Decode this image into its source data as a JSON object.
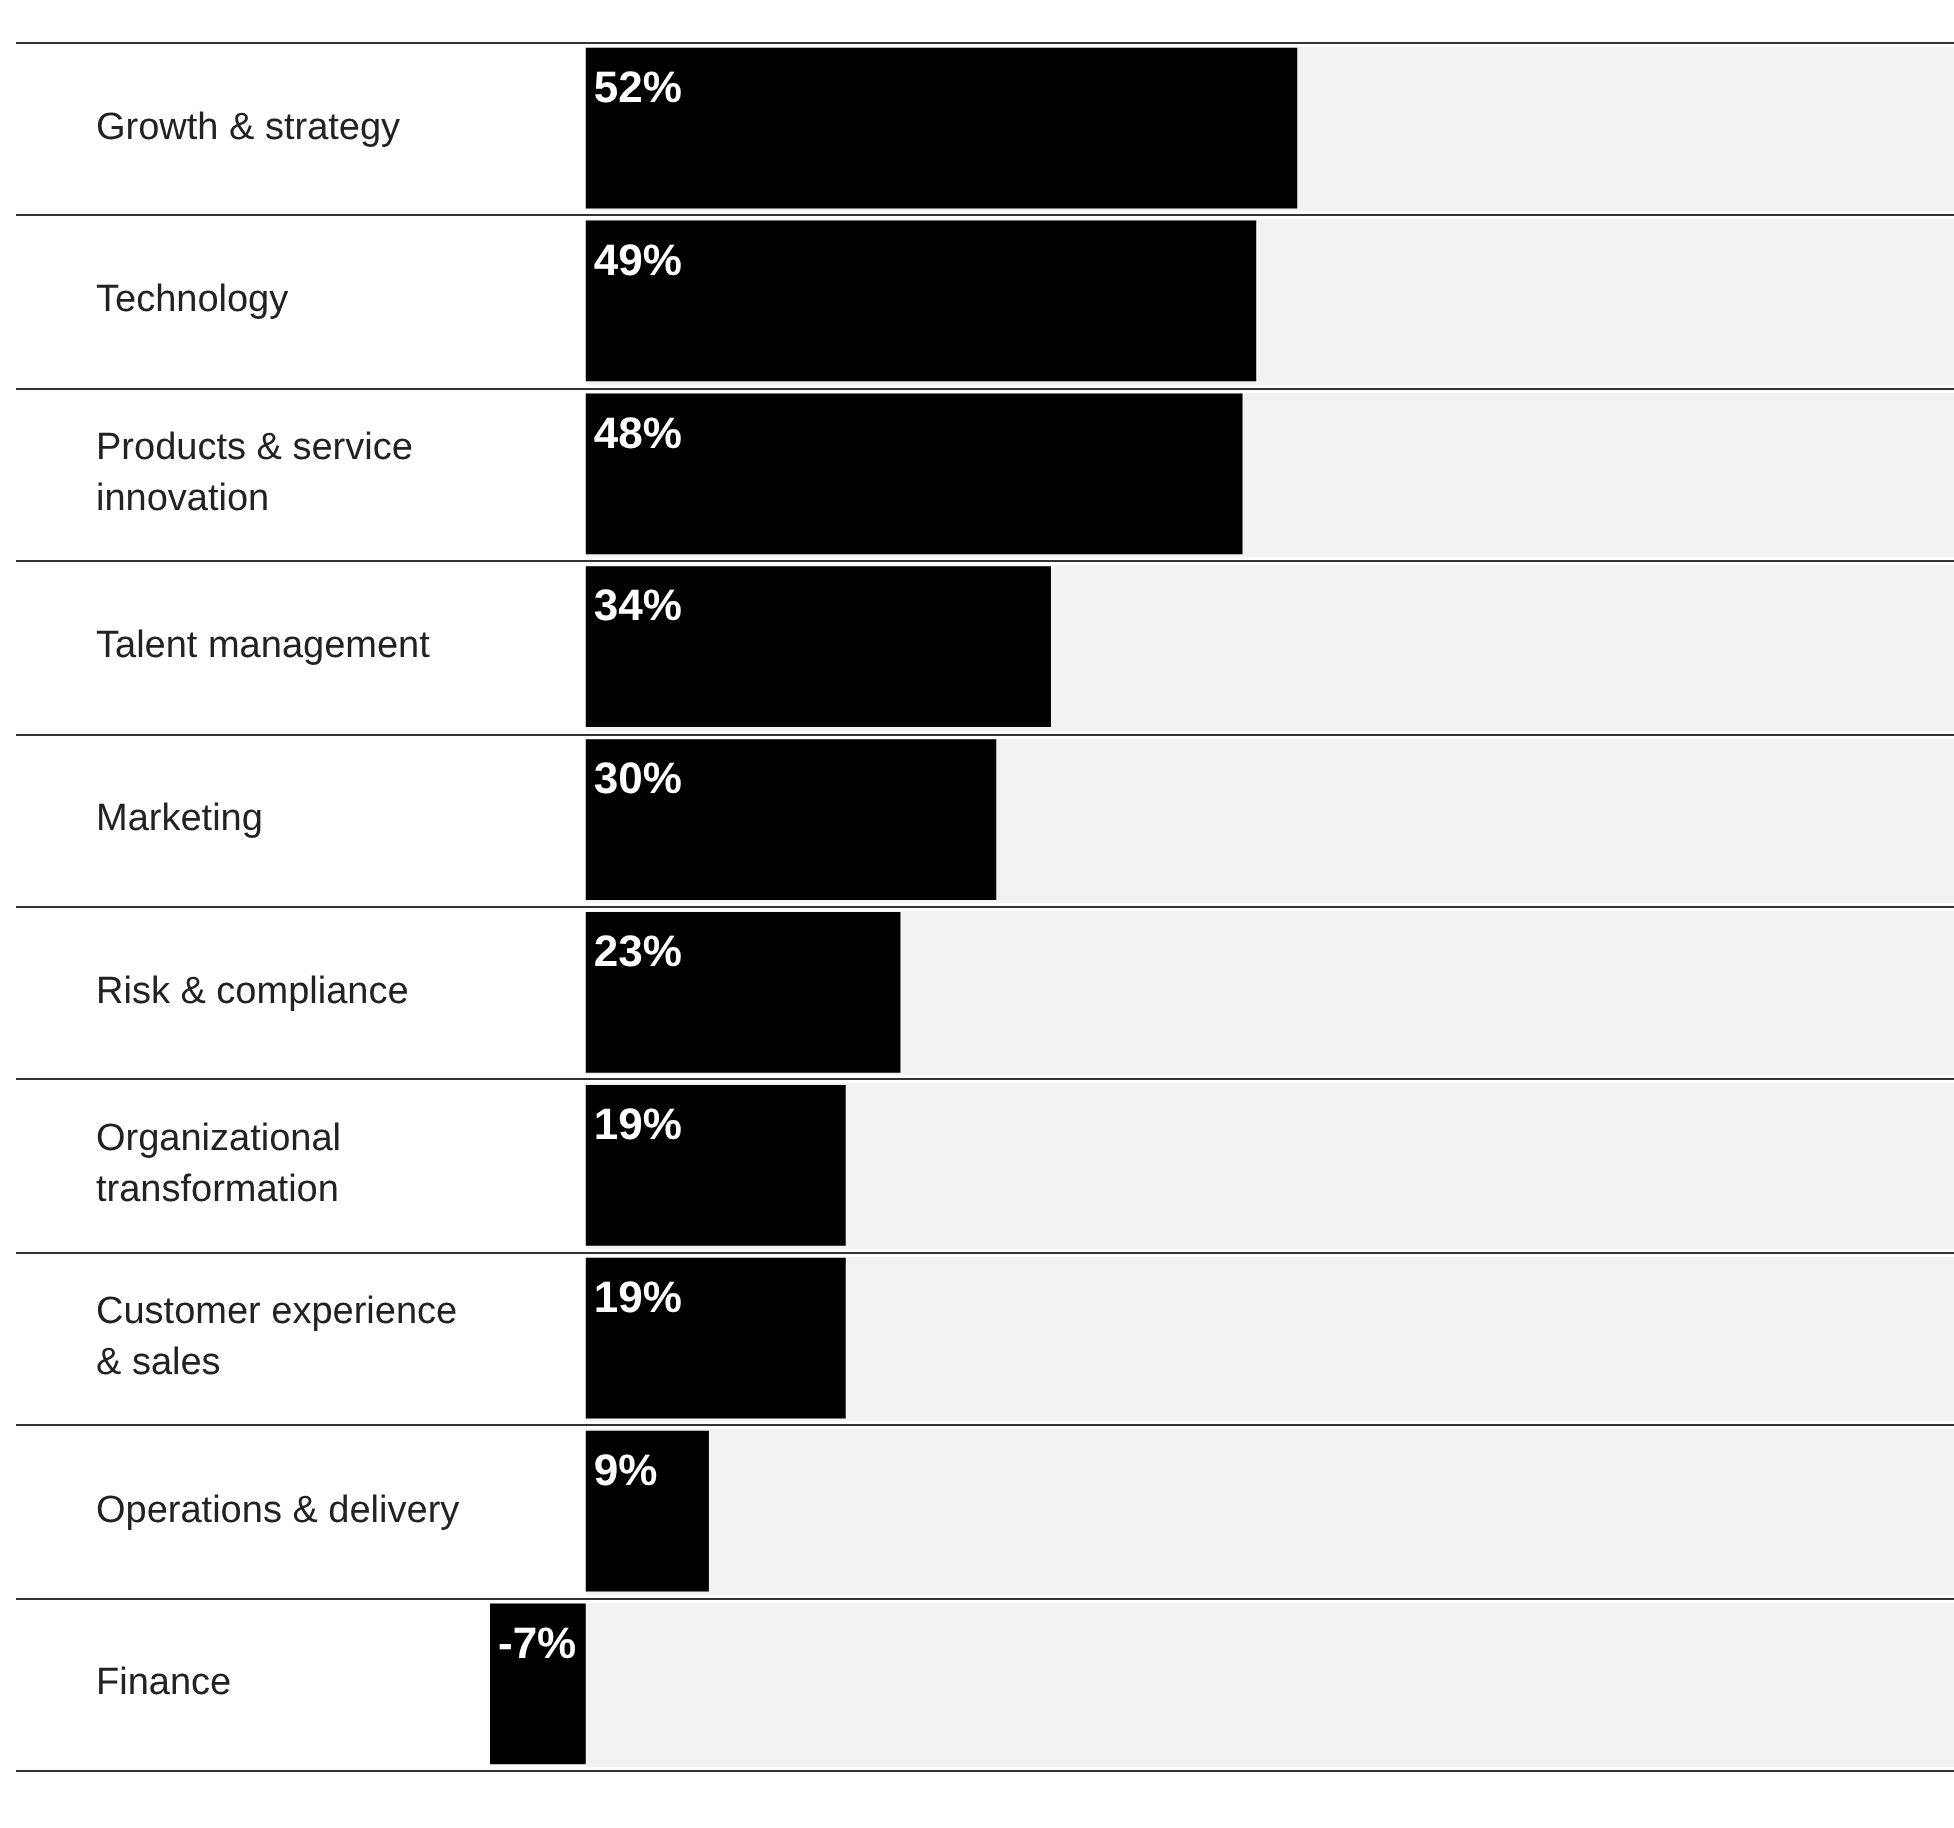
{
  "chart_data": {
    "type": "bar",
    "orientation": "horizontal",
    "categories": [
      "Growth & strategy",
      "Technology",
      "Products & service innovation",
      "Talent management",
      "Marketing",
      "Risk & compliance",
      "Organizational transformation",
      "Customer experience & sales",
      "Operations & delivery",
      "Finance"
    ],
    "values": [
      52,
      49,
      48,
      34,
      30,
      23,
      19,
      19,
      9,
      -7
    ],
    "value_labels": [
      "52%",
      "49%",
      "48%",
      "34%",
      "30%",
      "23%",
      "19%",
      "19%",
      "9%",
      "-7%"
    ],
    "color": "#000000",
    "xlim": [
      -7,
      100
    ],
    "bands": [
      {
        "axis": "x",
        "from": 0,
        "to": 100,
        "color": "#f2f2f2"
      }
    ],
    "grid": "y",
    "tick_labels": "y"
  }
}
